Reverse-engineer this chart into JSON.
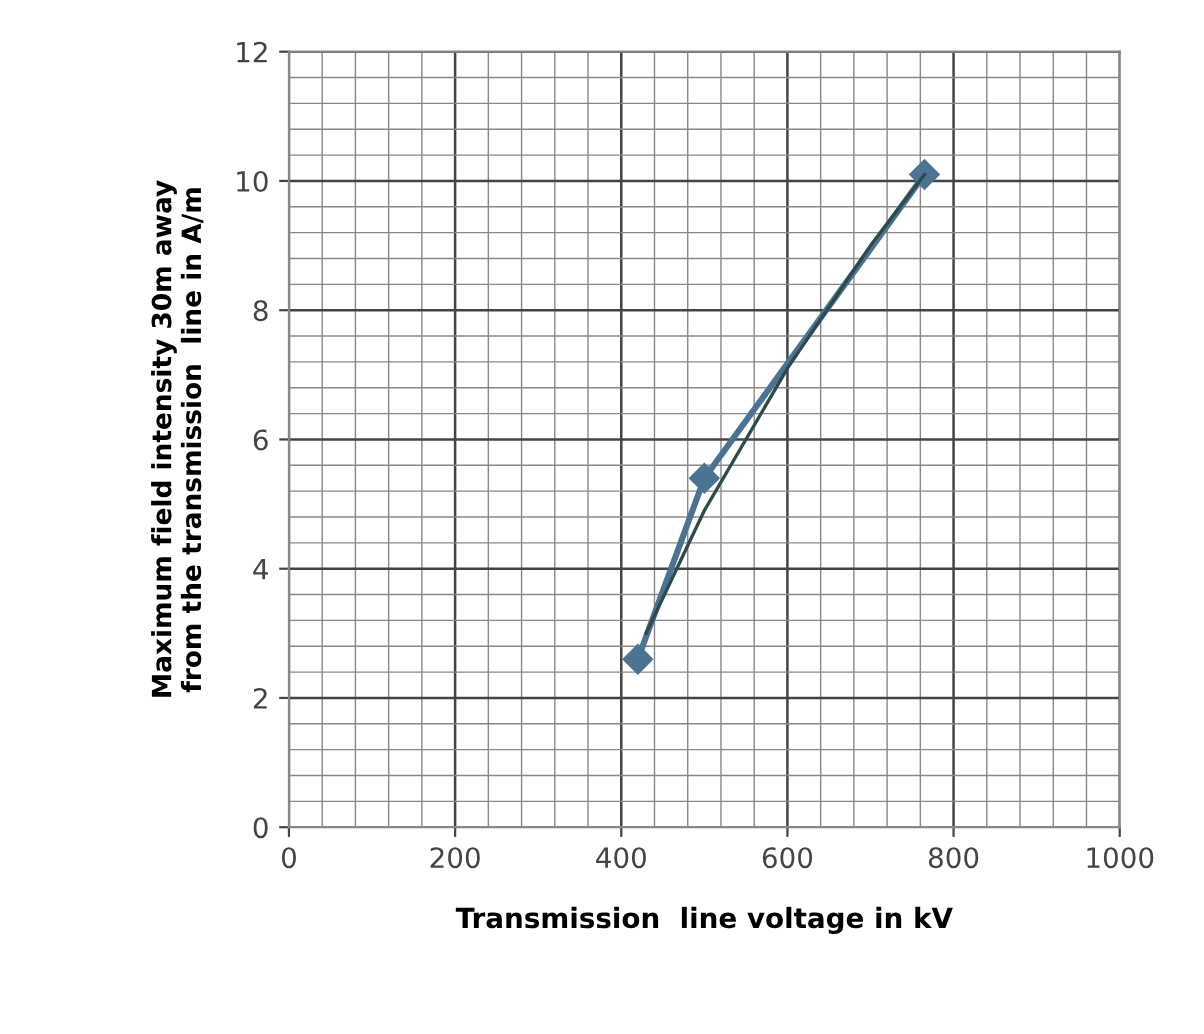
{
  "chart_data": {
    "type": "line",
    "xlabel": "Transmission  line voltage in kV",
    "ylabel": "Maximum field intensity 30m away\nfrom the transmission  line in A/m",
    "xlim": [
      0,
      1000
    ],
    "ylim": [
      0,
      12
    ],
    "xticks": [
      0,
      200,
      400,
      600,
      800,
      1000
    ],
    "yticks": [
      0,
      2,
      4,
      6,
      8,
      10,
      12
    ],
    "grid": true,
    "legend": false,
    "series": [
      {
        "color": "#4a7394",
        "x": [
          420,
          500,
          765
        ],
        "values": [
          2.6,
          5.4,
          10.1
        ],
        "marker": "diamond",
        "line_style": "solid"
      },
      {
        "color": "#2e4a4a",
        "x": [
          430,
          500,
          600,
          700,
          765
        ],
        "values": [
          3.0,
          4.9,
          7.1,
          9.0,
          10.1
        ],
        "marker": "none",
        "line_style": "solid"
      }
    ]
  }
}
